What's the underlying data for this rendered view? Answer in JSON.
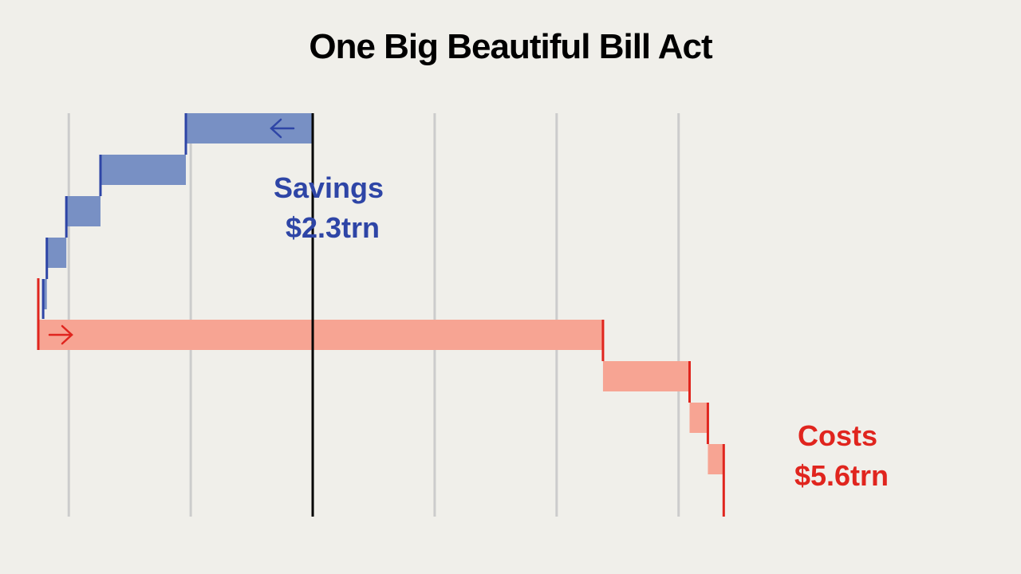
{
  "title": "One Big Beautiful Bill Act",
  "colors": {
    "background": "#f0efea",
    "savings_fill": "#7890c4",
    "savings_edge": "#2e45a6",
    "costs_fill": "#f7a493",
    "costs_edge": "#e0251e",
    "zero_line": "#000000",
    "grid": "#cccccc"
  },
  "chart_data": {
    "type": "waterfall",
    "title": "One Big Beautiful Bill Act",
    "xlim": [
      -1.125,
      2.75
    ],
    "grid_ticks": [
      -1,
      -0.5,
      0,
      0.5,
      1,
      1.5
    ],
    "grid": true,
    "series": [
      {
        "name": "Savings",
        "label_lines": [
          "Savings",
          "$2.3trn"
        ],
        "direction": "leftward",
        "steps": [
          {
            "start": -1.105,
            "end": -1.09
          },
          {
            "start": -1.09,
            "end": -1.01
          },
          {
            "start": -1.01,
            "end": -0.87
          },
          {
            "start": -0.87,
            "end": -0.52
          },
          {
            "start": -0.52,
            "end": 0
          }
        ]
      },
      {
        "name": "Costs",
        "label_lines": [
          "Costs",
          "$5.6trn"
        ],
        "direction": "rightward",
        "steps": [
          {
            "start": -1.125,
            "end": 1.19
          },
          {
            "start": 1.19,
            "end": 1.545
          },
          {
            "start": 1.545,
            "end": 1.62
          },
          {
            "start": 1.62,
            "end": 1.685
          }
        ]
      }
    ]
  }
}
